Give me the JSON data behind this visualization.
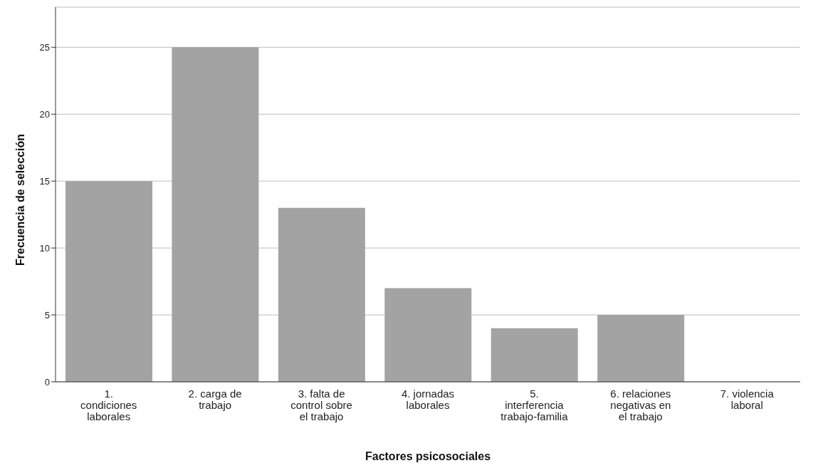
{
  "chart_data": {
    "type": "bar",
    "xlabel": "Factores psicosociales",
    "ylabel": "Frecuencia de selección",
    "categories": [
      "1. condiciones laborales",
      "2. carga de trabajo",
      "3. falta de control sobre el trabajo",
      "4. jornadas laborales",
      "5. interferencia trabajo-familia",
      "6. relaciones negativas en el trabajo",
      "7. violencia laboral"
    ],
    "values": [
      15,
      25,
      13,
      7,
      4,
      5,
      0
    ],
    "color": "#a3a3a3",
    "ylim": [
      0,
      28
    ],
    "yticks": [
      0,
      5,
      10,
      15,
      20,
      25
    ],
    "grid": "y"
  }
}
